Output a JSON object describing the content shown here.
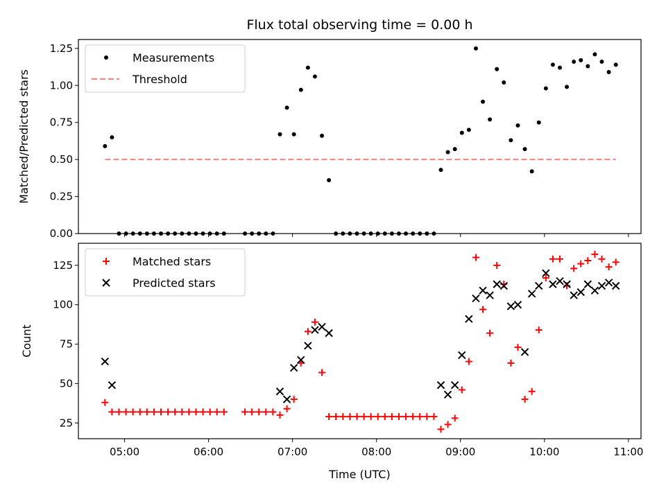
{
  "chart_data": [
    {
      "type": "scatter",
      "title": "Flux total observing time = 0.00 h",
      "ylabel": "Matched/Predicted stars",
      "xlabel": "",
      "xlim": [
        "04:27",
        "11:09"
      ],
      "ylim": [
        0,
        1.31
      ],
      "yticks": [
        0.0,
        0.25,
        0.5,
        0.75,
        1.0,
        1.25
      ],
      "ytick_labels": [
        "0.00",
        "0.25",
        "0.50",
        "0.75",
        "1.00",
        "1.25"
      ],
      "xticks": [
        "05:00",
        "06:00",
        "07:00",
        "08:00",
        "09:00",
        "10:00",
        "11:00"
      ],
      "xticks_labeled": false,
      "legend_position": "top-left",
      "series": [
        {
          "name": "Measurements",
          "style": "dot",
          "color": "#000000",
          "points": [
            [
              "04:46",
              0.59
            ],
            [
              "04:51",
              0.65
            ],
            [
              "04:56",
              0.0
            ],
            [
              "05:01",
              0.0
            ],
            [
              "05:06",
              0.0
            ],
            [
              "05:11",
              0.0
            ],
            [
              "05:16",
              0.0
            ],
            [
              "05:21",
              0.0
            ],
            [
              "05:26",
              0.0
            ],
            [
              "05:31",
              0.0
            ],
            [
              "05:36",
              0.0
            ],
            [
              "05:41",
              0.0
            ],
            [
              "05:46",
              0.0
            ],
            [
              "05:51",
              0.0
            ],
            [
              "05:56",
              0.0
            ],
            [
              "06:01",
              0.0
            ],
            [
              "06:06",
              0.0
            ],
            [
              "06:11",
              0.0
            ],
            [
              "06:26",
              0.0
            ],
            [
              "06:31",
              0.0
            ],
            [
              "06:36",
              0.0
            ],
            [
              "06:41",
              0.0
            ],
            [
              "06:46",
              0.0
            ],
            [
              "06:51",
              0.67
            ],
            [
              "06:56",
              0.85
            ],
            [
              "07:01",
              0.67
            ],
            [
              "07:06",
              0.97
            ],
            [
              "07:11",
              1.12
            ],
            [
              "07:16",
              1.06
            ],
            [
              "07:21",
              0.66
            ],
            [
              "07:26",
              0.36
            ],
            [
              "07:31",
              0.0
            ],
            [
              "07:36",
              0.0
            ],
            [
              "07:41",
              0.0
            ],
            [
              "07:46",
              0.0
            ],
            [
              "07:51",
              0.0
            ],
            [
              "07:56",
              0.0
            ],
            [
              "08:01",
              0.0
            ],
            [
              "08:06",
              0.0
            ],
            [
              "08:11",
              0.0
            ],
            [
              "08:16",
              0.0
            ],
            [
              "08:21",
              0.0
            ],
            [
              "08:26",
              0.0
            ],
            [
              "08:31",
              0.0
            ],
            [
              "08:36",
              0.0
            ],
            [
              "08:41",
              0.0
            ],
            [
              "08:46",
              0.43
            ],
            [
              "08:51",
              0.55
            ],
            [
              "08:56",
              0.57
            ],
            [
              "09:01",
              0.68
            ],
            [
              "09:06",
              0.7
            ],
            [
              "09:11",
              1.25
            ],
            [
              "09:16",
              0.89
            ],
            [
              "09:21",
              0.77
            ],
            [
              "09:26",
              1.11
            ],
            [
              "09:31",
              1.02
            ],
            [
              "09:36",
              0.63
            ],
            [
              "09:41",
              0.73
            ],
            [
              "09:46",
              0.57
            ],
            [
              "09:51",
              0.42
            ],
            [
              "09:56",
              0.75
            ],
            [
              "10:01",
              0.98
            ],
            [
              "10:06",
              1.14
            ],
            [
              "10:11",
              1.12
            ],
            [
              "10:16",
              0.99
            ],
            [
              "10:21",
              1.16
            ],
            [
              "10:26",
              1.17
            ],
            [
              "10:31",
              1.13
            ],
            [
              "10:36",
              1.21
            ],
            [
              "10:41",
              1.16
            ],
            [
              "10:46",
              1.09
            ],
            [
              "10:51",
              1.14
            ]
          ]
        },
        {
          "name": "Threshold",
          "style": "dashed-line",
          "color": "#ff8080",
          "points": [
            [
              "04:46",
              0.5
            ],
            [
              "10:51",
              0.5
            ]
          ]
        }
      ]
    },
    {
      "type": "scatter",
      "title": "",
      "ylabel": "Count",
      "xlabel": "Time (UTC)",
      "xlim": [
        "04:27",
        "11:09"
      ],
      "ylim": [
        15,
        139
      ],
      "yticks": [
        25,
        50,
        75,
        100,
        125
      ],
      "ytick_labels": [
        "25",
        "50",
        "75",
        "100",
        "125"
      ],
      "xticks": [
        "05:00",
        "06:00",
        "07:00",
        "08:00",
        "09:00",
        "10:00",
        "11:00"
      ],
      "xtick_labels": [
        "05:00",
        "06:00",
        "07:00",
        "08:00",
        "09:00",
        "10:00",
        "11:00"
      ],
      "legend_position": "top-left",
      "series": [
        {
          "name": "Matched stars",
          "style": "plus",
          "color": "#ff0000",
          "points": [
            [
              "04:46",
              38
            ],
            [
              "04:51",
              32
            ],
            [
              "04:56",
              32
            ],
            [
              "05:01",
              32
            ],
            [
              "05:06",
              32
            ],
            [
              "05:11",
              32
            ],
            [
              "05:16",
              32
            ],
            [
              "05:21",
              32
            ],
            [
              "05:26",
              32
            ],
            [
              "05:31",
              32
            ],
            [
              "05:36",
              32
            ],
            [
              "05:41",
              32
            ],
            [
              "05:46",
              32
            ],
            [
              "05:51",
              32
            ],
            [
              "05:56",
              32
            ],
            [
              "06:01",
              32
            ],
            [
              "06:06",
              32
            ],
            [
              "06:11",
              32
            ],
            [
              "06:26",
              32
            ],
            [
              "06:31",
              32
            ],
            [
              "06:36",
              32
            ],
            [
              "06:41",
              32
            ],
            [
              "06:46",
              32
            ],
            [
              "06:51",
              30
            ],
            [
              "06:56",
              34
            ],
            [
              "07:01",
              40
            ],
            [
              "07:06",
              63
            ],
            [
              "07:11",
              83
            ],
            [
              "07:16",
              89
            ],
            [
              "07:21",
              57
            ],
            [
              "07:26",
              29
            ],
            [
              "07:31",
              29
            ],
            [
              "07:36",
              29
            ],
            [
              "07:41",
              29
            ],
            [
              "07:46",
              29
            ],
            [
              "07:51",
              29
            ],
            [
              "07:56",
              29
            ],
            [
              "08:01",
              29
            ],
            [
              "08:06",
              29
            ],
            [
              "08:11",
              29
            ],
            [
              "08:16",
              29
            ],
            [
              "08:21",
              29
            ],
            [
              "08:26",
              29
            ],
            [
              "08:31",
              29
            ],
            [
              "08:36",
              29
            ],
            [
              "08:41",
              29
            ],
            [
              "08:46",
              21
            ],
            [
              "08:51",
              24
            ],
            [
              "08:56",
              28
            ],
            [
              "09:01",
              46
            ],
            [
              "09:06",
              64
            ],
            [
              "09:11",
              130
            ],
            [
              "09:16",
              97
            ],
            [
              "09:21",
              82
            ],
            [
              "09:26",
              125
            ],
            [
              "09:31",
              113
            ],
            [
              "09:36",
              63
            ],
            [
              "09:41",
              73
            ],
            [
              "09:46",
              40
            ],
            [
              "09:51",
              45
            ],
            [
              "09:56",
              84
            ],
            [
              "10:01",
              117
            ],
            [
              "10:06",
              129
            ],
            [
              "10:11",
              129
            ],
            [
              "10:16",
              112
            ],
            [
              "10:21",
              123
            ],
            [
              "10:26",
              126
            ],
            [
              "10:31",
              128
            ],
            [
              "10:36",
              132
            ],
            [
              "10:41",
              129
            ],
            [
              "10:46",
              124
            ],
            [
              "10:51",
              127
            ]
          ]
        },
        {
          "name": "Predicted stars",
          "style": "x",
          "color": "#000000",
          "points": [
            [
              "04:46",
              64
            ],
            [
              "04:51",
              49
            ],
            [
              "06:51",
              45
            ],
            [
              "06:56",
              40
            ],
            [
              "07:01",
              60
            ],
            [
              "07:06",
              65
            ],
            [
              "07:11",
              74
            ],
            [
              "07:16",
              84
            ],
            [
              "07:21",
              86
            ],
            [
              "07:26",
              82
            ],
            [
              "08:46",
              49
            ],
            [
              "08:51",
              43
            ],
            [
              "08:56",
              49
            ],
            [
              "09:01",
              68
            ],
            [
              "09:06",
              91
            ],
            [
              "09:11",
              104
            ],
            [
              "09:16",
              109
            ],
            [
              "09:21",
              106
            ],
            [
              "09:26",
              113
            ],
            [
              "09:31",
              112
            ],
            [
              "09:36",
              99
            ],
            [
              "09:41",
              100
            ],
            [
              "09:46",
              70
            ],
            [
              "09:51",
              107
            ],
            [
              "09:56",
              112
            ],
            [
              "10:01",
              120
            ],
            [
              "10:06",
              113
            ],
            [
              "10:11",
              115
            ],
            [
              "10:16",
              113
            ],
            [
              "10:21",
              106
            ],
            [
              "10:26",
              108
            ],
            [
              "10:31",
              113
            ],
            [
              "10:36",
              109
            ],
            [
              "10:41",
              112
            ],
            [
              "10:46",
              114
            ],
            [
              "10:51",
              112
            ]
          ]
        }
      ]
    }
  ]
}
